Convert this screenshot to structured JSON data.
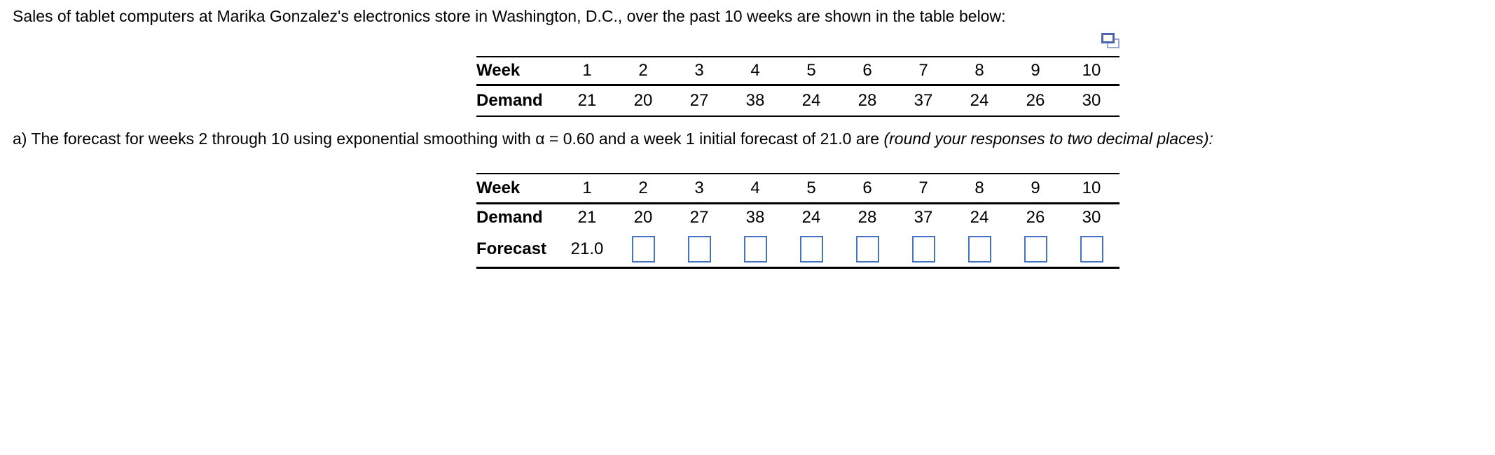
{
  "problem": {
    "statement": "Sales of tablet computers at Marika Gonzalez's electronics store in Washington, D.C., over the past 10 weeks are shown in the table below:"
  },
  "part_a": {
    "text": "a) The forecast for weeks 2 through 10 using exponential smoothing with α = 0.60 and a week 1 initial forecast of 21.0 are ",
    "note_italic": "(round your responses to two decimal places):"
  },
  "icons": {
    "popup_table_icon": "duplicate-window-icon"
  },
  "colors": {
    "input_border": "#4472C4",
    "icon_front": "#4F63AD",
    "icon_back": "#9AA9D4",
    "text": "#000000",
    "background": "#FFFFFF"
  },
  "demand_table": {
    "week_label": "Week",
    "demand_label": "Demand",
    "weeks": [
      "1",
      "2",
      "3",
      "4",
      "5",
      "6",
      "7",
      "8",
      "9",
      "10"
    ],
    "demand": [
      "21",
      "20",
      "27",
      "38",
      "24",
      "28",
      "37",
      "24",
      "26",
      "30"
    ]
  },
  "forecast_table": {
    "week_label": "Week",
    "demand_label": "Demand",
    "forecast_label": "Forecast",
    "weeks": [
      "1",
      "2",
      "3",
      "4",
      "5",
      "6",
      "7",
      "8",
      "9",
      "10"
    ],
    "demand": [
      "21",
      "20",
      "27",
      "38",
      "24",
      "28",
      "37",
      "24",
      "26",
      "30"
    ],
    "forecast_initial": "21.0",
    "forecast_input_values": [
      "",
      "",
      "",
      "",
      "",
      "",
      "",
      "",
      ""
    ]
  }
}
